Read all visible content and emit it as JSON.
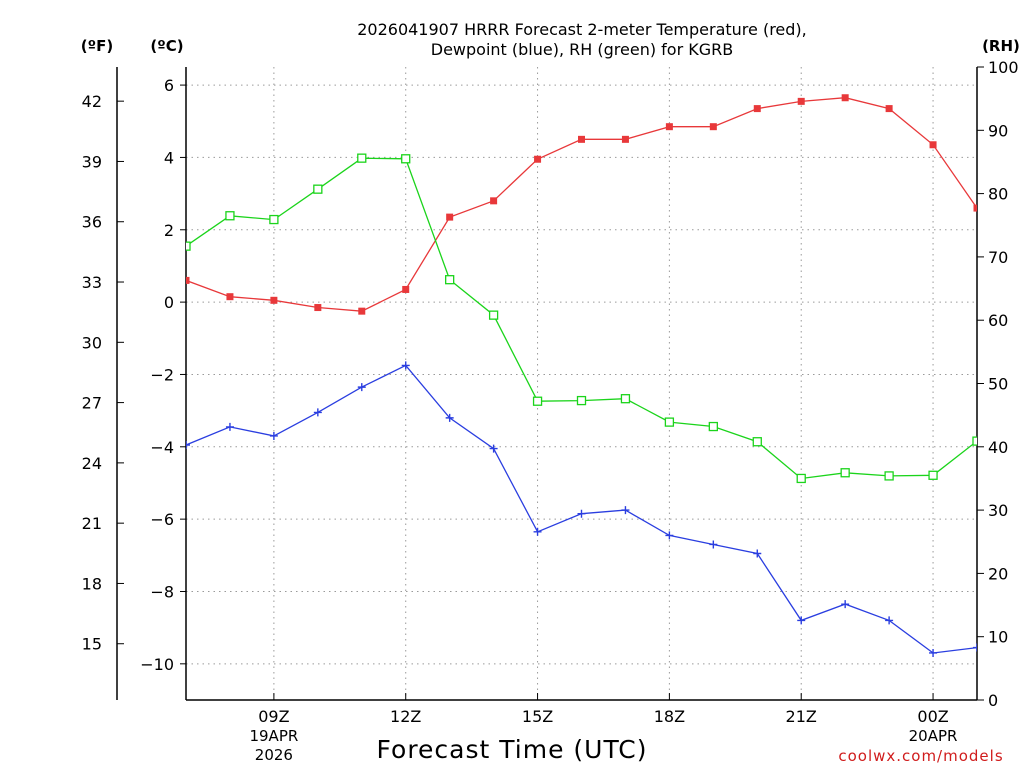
{
  "chart_data": {
    "type": "line",
    "title_line1": "2026041907 HRRR Forecast 2-meter Temperature (red),",
    "title_line2": "Dewpoint (blue), RH (green) for KGRB",
    "xlabel": "Forecast Time (UTC)",
    "credit": "coolwx.com/models",
    "unit_f": "(ºF)",
    "unit_c": "(ºC)",
    "unit_rh": "(RH)",
    "x_hours": [
      7,
      8,
      9,
      10,
      11,
      12,
      13,
      14,
      15,
      16,
      17,
      18,
      19,
      20,
      21,
      22,
      23,
      24,
      25
    ],
    "x_range": [
      7,
      25
    ],
    "x_ticks": [
      {
        "hour": 9,
        "label": "09Z",
        "date1": "19APR",
        "date2": "2026"
      },
      {
        "hour": 12,
        "label": "12Z",
        "date1": "",
        "date2": ""
      },
      {
        "hour": 15,
        "label": "15Z",
        "date1": "",
        "date2": ""
      },
      {
        "hour": 18,
        "label": "18Z",
        "date1": "",
        "date2": ""
      },
      {
        "hour": 21,
        "label": "21Z",
        "date1": "",
        "date2": ""
      },
      {
        "hour": 24,
        "label": "00Z",
        "date1": "20APR",
        "date2": ""
      }
    ],
    "c_axis": {
      "range": [
        -11.0,
        6.5
      ],
      "ticks": [
        "6",
        "4",
        "2",
        "0",
        "−2",
        "−4",
        "−6",
        "−8",
        "−10"
      ],
      "tick_values": [
        6,
        4,
        2,
        0,
        -2,
        -4,
        -6,
        -8,
        -10
      ]
    },
    "f_axis": {
      "ticks": [
        "42",
        "39",
        "36",
        "33",
        "30",
        "27",
        "24",
        "21",
        "18",
        "15"
      ],
      "tick_values": [
        42,
        39,
        36,
        33,
        30,
        27,
        24,
        21,
        18,
        15
      ]
    },
    "rh_axis": {
      "range": [
        0,
        100
      ],
      "ticks": [
        "100",
        "90",
        "80",
        "70",
        "60",
        "50",
        "40",
        "30",
        "20",
        "10",
        "0"
      ],
      "tick_values": [
        100,
        90,
        80,
        70,
        60,
        50,
        40,
        30,
        20,
        10,
        0
      ]
    },
    "series": [
      {
        "name": "Temperature",
        "axis": "c",
        "color": "#e8383a",
        "marker": "filled-square",
        "values": [
          0.6,
          0.15,
          0.05,
          -0.15,
          -0.25,
          0.35,
          2.35,
          2.8,
          3.95,
          4.5,
          4.5,
          4.85,
          4.85,
          5.35,
          5.55,
          5.65,
          5.35,
          4.35,
          2.6
        ]
      },
      {
        "name": "Dewpoint",
        "axis": "c",
        "color": "#2a3ee0",
        "marker": "plus",
        "values": [
          -3.95,
          -3.45,
          -3.7,
          -3.05,
          -2.35,
          -1.75,
          -3.2,
          -4.05,
          -6.35,
          -5.85,
          -5.75,
          -6.45,
          -6.7,
          -6.95,
          -8.8,
          -8.35,
          -8.8,
          -9.7,
          -9.55
        ]
      },
      {
        "name": "RH",
        "axis": "rh",
        "color": "#1bd41b",
        "marker": "open-square",
        "values": [
          71.7,
          76.5,
          75.9,
          80.7,
          85.6,
          85.5,
          66.4,
          60.8,
          47.2,
          47.3,
          47.6,
          43.9,
          43.2,
          40.8,
          35.0,
          35.9,
          35.4,
          35.5,
          40.9
        ]
      }
    ]
  }
}
